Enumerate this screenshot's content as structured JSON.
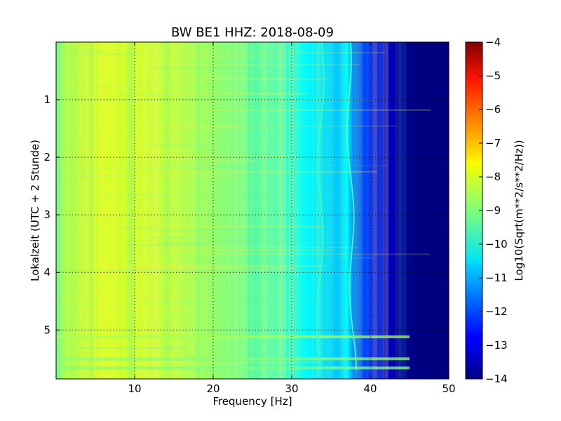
{
  "chart_data": {
    "type": "heatmap",
    "title": "BW BE1 HHZ: 2018-08-09",
    "xlabel": "Frequency [Hz]",
    "ylabel": "Lokalzeit (UTC + 2 Stunde)",
    "xlim": [
      0,
      50
    ],
    "ylim": [
      5.85,
      0
    ],
    "x_ticks": [
      10,
      20,
      30,
      40,
      50
    ],
    "y_ticks": [
      1,
      2,
      3,
      4,
      5
    ],
    "grid": true,
    "colorscale": "jet",
    "colorbar": {
      "label": "Log10(Sqrt(m**2/s**2/Hz))",
      "range": [
        -14,
        -4
      ],
      "ticks": [
        -4,
        -5,
        -6,
        -7,
        -8,
        -9,
        -10,
        -11,
        -12,
        -13,
        -14
      ]
    },
    "spectrum_profile": {
      "frequency_hz": [
        0,
        2,
        5,
        10,
        15,
        20,
        25,
        28,
        30,
        32,
        34,
        36,
        37,
        38,
        40,
        42,
        44,
        46,
        50
      ],
      "log_amplitude": [
        -8.9,
        -8.3,
        -8.1,
        -8.2,
        -8.4,
        -8.8,
        -9.2,
        -9.5,
        -9.9,
        -10.3,
        -10.5,
        -10.8,
        -10.2,
        -11.6,
        -12.4,
        -13.2,
        -13.8,
        -14,
        -14
      ]
    },
    "line_features": [
      {
        "frequency_hz": 33.8,
        "log_amplitude": -9.8
      },
      {
        "frequency_hz": 37.2,
        "log_amplitude": -9.5
      }
    ],
    "horizontal_bands": [
      {
        "time_h": 5.12,
        "log_amplitude": -8.6
      },
      {
        "time_h": 5.5,
        "log_amplitude": -8.9
      },
      {
        "time_h": 5.66,
        "log_amplitude": -9.0
      }
    ]
  }
}
